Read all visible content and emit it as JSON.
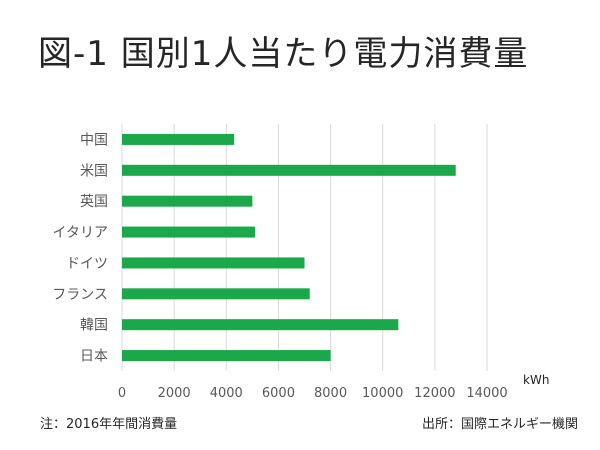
{
  "title": "図-1 国別1人当たり電力消費量",
  "unit_label": "kWh",
  "note_left": "注：2016年年間消費量",
  "note_right": "出所：国際エネルギー機関",
  "colors": {
    "bar": "#1aa84a",
    "grid": "#d9d9d9",
    "axis_text": "#595959"
  },
  "chart_data": {
    "type": "bar",
    "orientation": "horizontal",
    "categories": [
      "中国",
      "米国",
      "英国",
      "イタリア",
      "ドイツ",
      "フランス",
      "韓国",
      "日本"
    ],
    "values": [
      4300,
      12800,
      5000,
      5100,
      7000,
      7200,
      10600,
      8000
    ],
    "xlim": [
      0,
      14000
    ],
    "xticks": [
      "0",
      "2000",
      "4000",
      "6000",
      "8000",
      "10000",
      "12000",
      "14000"
    ],
    "grid": "vertical",
    "legend": "none"
  }
}
